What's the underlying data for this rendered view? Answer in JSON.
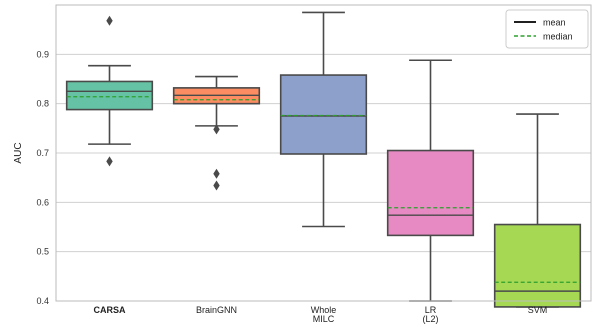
{
  "chart_data": {
    "type": "box",
    "ylabel": "AUC",
    "ylim": [
      0.4,
      1.0
    ],
    "yticks": [
      0.4,
      0.5,
      0.6,
      0.7,
      0.8,
      0.9
    ],
    "grid": "horizontal",
    "legend": {
      "placement": "top-right",
      "entries": [
        {
          "label": "mean",
          "style": "solid",
          "color": "#000000"
        },
        {
          "label": "median",
          "style": "dashed",
          "color": "#2ca02c"
        }
      ]
    },
    "categories": [
      {
        "label_lines": [
          "CARSA"
        ],
        "bold": true,
        "color": "#66c2a5",
        "whisker_low": 0.718,
        "q1": 0.788,
        "median": 0.825,
        "mean": 0.814,
        "q3": 0.845,
        "whisker_high": 0.877,
        "outliers": [
          0.968,
          0.683
        ]
      },
      {
        "label_lines": [
          "BrainGNN"
        ],
        "bold": false,
        "color": "#fc8d62",
        "whisker_low": 0.755,
        "q1": 0.8,
        "median": 0.817,
        "mean": 0.808,
        "q3": 0.832,
        "whisker_high": 0.855,
        "outliers": [
          0.748,
          0.658,
          0.634
        ]
      },
      {
        "label_lines": [
          "Whole",
          "MILC"
        ],
        "bold": false,
        "color": "#8da0cb",
        "whisker_low": 0.551,
        "q1": 0.698,
        "median": 0.775,
        "mean": 0.776,
        "q3": 0.858,
        "whisker_high": 0.985,
        "outliers": []
      },
      {
        "label_lines": [
          "LR",
          "(L2)"
        ],
        "bold": false,
        "color": "#e78ac3",
        "whisker_low": 0.4,
        "q1": 0.533,
        "median": 0.574,
        "mean": 0.589,
        "q3": 0.705,
        "whisker_high": 0.888,
        "outliers": []
      },
      {
        "label_lines": [
          "SVM"
        ],
        "bold": false,
        "color": "#a6d854",
        "whisker_low": 0.388,
        "q1": 0.388,
        "median": 0.42,
        "mean": 0.438,
        "q3": 0.555,
        "whisker_high": 0.779,
        "outliers": []
      }
    ]
  }
}
